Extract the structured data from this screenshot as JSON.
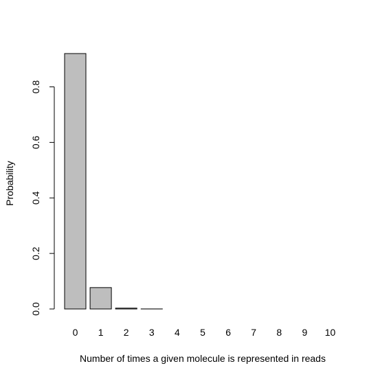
{
  "chart_data": {
    "type": "bar",
    "title": "",
    "xlabel": "Number of times a given molecule is represented in reads",
    "ylabel": "Probability",
    "categories": [
      "0",
      "1",
      "2",
      "3",
      "4",
      "5",
      "6",
      "7",
      "8",
      "9",
      "10"
    ],
    "values": [
      0.92,
      0.077,
      0.003,
      0.0002,
      0.0,
      0.0,
      0.0,
      0.0,
      0.0,
      0.0,
      0.0
    ],
    "ylim": [
      0,
      0.92
    ],
    "yticks": [
      0.0,
      0.2,
      0.4,
      0.6,
      0.8
    ],
    "ytick_labels": [
      "0.0",
      "0.2",
      "0.4",
      "0.6",
      "0.8"
    ],
    "grid": false,
    "bar_color": "#bebebe",
    "bar_edge_color": "#000000"
  }
}
